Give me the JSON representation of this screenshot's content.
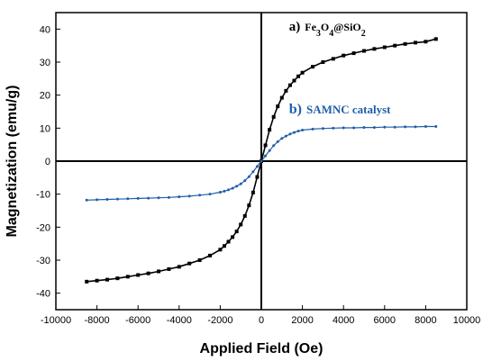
{
  "chart_data": {
    "type": "line",
    "title": "",
    "xlabel": "Applied Field (Oe)",
    "ylabel": "Magnetization (emu/g)",
    "xlim": [
      -10000,
      10000
    ],
    "ylim": [
      -45,
      45
    ],
    "x_ticks": [
      -10000,
      -8000,
      -6000,
      -4000,
      -2000,
      0,
      2000,
      4000,
      6000,
      8000,
      10000
    ],
    "y_ticks": [
      -40,
      -30,
      -20,
      -10,
      0,
      10,
      20,
      30,
      40
    ],
    "grid": false,
    "series": [
      {
        "name": "a) Fe3O4@SiO2",
        "color": "#000000",
        "marker": "square",
        "x": [
          -8500,
          -8000,
          -7500,
          -7000,
          -6500,
          -6000,
          -5500,
          -5000,
          -4500,
          -4000,
          -3500,
          -3000,
          -2500,
          -2000,
          -1800,
          -1600,
          -1400,
          -1200,
          -1000,
          -800,
          -600,
          -400,
          -200,
          0,
          200,
          400,
          600,
          800,
          1000,
          1200,
          1400,
          1600,
          1800,
          2000,
          2500,
          3000,
          3500,
          4000,
          4500,
          5000,
          5500,
          6000,
          6500,
          7000,
          7500,
          8000,
          8500
        ],
        "y": [
          -36.5,
          -36.2,
          -35.9,
          -35.5,
          -35.0,
          -34.5,
          -34.0,
          -33.4,
          -32.7,
          -32.0,
          -31.0,
          -30.0,
          -28.6,
          -26.8,
          -25.7,
          -24.4,
          -23.0,
          -21.3,
          -19.2,
          -16.6,
          -13.4,
          -9.5,
          -4.8,
          0,
          4.8,
          9.5,
          13.4,
          16.6,
          19.2,
          21.3,
          23.0,
          24.4,
          25.7,
          26.8,
          28.6,
          30.0,
          31.0,
          32.0,
          32.7,
          33.4,
          34.0,
          34.5,
          35.0,
          35.5,
          35.9,
          36.2,
          37.0
        ]
      },
      {
        "name": "b) SAMNC catalyst",
        "color": "#1f5fa8",
        "marker": "dot",
        "x": [
          -8500,
          -8000,
          -7500,
          -7000,
          -6500,
          -6000,
          -5500,
          -5000,
          -4500,
          -4000,
          -3500,
          -3000,
          -2500,
          -2000,
          -1800,
          -1600,
          -1400,
          -1200,
          -1000,
          -800,
          -600,
          -400,
          -200,
          0,
          200,
          400,
          600,
          800,
          1000,
          1200,
          1400,
          1600,
          1800,
          2000,
          2500,
          3000,
          3500,
          4000,
          4500,
          5000,
          5500,
          6000,
          6500,
          7000,
          7500,
          8000,
          8500
        ],
        "y": [
          -11.8,
          -11.7,
          -11.6,
          -11.5,
          -11.4,
          -11.3,
          -11.2,
          -11.1,
          -11.0,
          -10.8,
          -10.6,
          -10.3,
          -10.0,
          -9.4,
          -9.1,
          -8.7,
          -8.2,
          -7.6,
          -6.9,
          -5.9,
          -4.7,
          -3.2,
          -1.6,
          0,
          1.6,
          3.2,
          4.7,
          5.9,
          6.9,
          7.6,
          8.2,
          8.7,
          9.1,
          9.4,
          9.7,
          9.9,
          10.0,
          10.1,
          10.1,
          10.2,
          10.2,
          10.3,
          10.3,
          10.4,
          10.4,
          10.5,
          10.5
        ]
      }
    ],
    "annotations": [
      {
        "series": 0,
        "prefix": "a)",
        "formula_parts": [
          "Fe",
          "3",
          "O",
          "4",
          "@SiO",
          "2"
        ],
        "color": "#000000",
        "x": 1350,
        "y": 39.5
      },
      {
        "series": 1,
        "prefix": "b)",
        "label": "SAMNC catalyst",
        "color": "#1f5fa8",
        "x": 1350,
        "y": 14.5
      }
    ]
  }
}
